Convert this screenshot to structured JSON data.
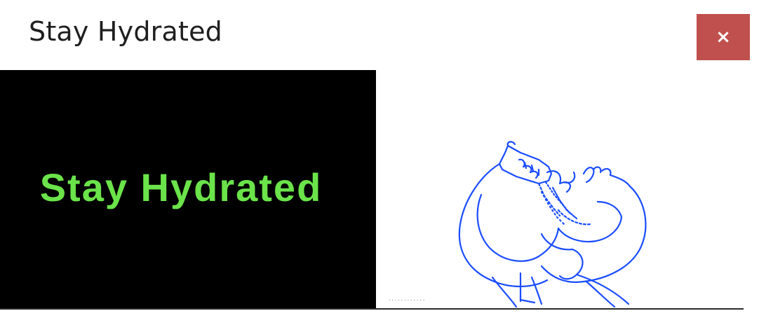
{
  "window": {
    "title": "Stay Hydrated",
    "close_label": "×"
  },
  "banner": {
    "text": "Stay Hydrated",
    "text_color": "#6be34a",
    "background_color": "#000000"
  },
  "illustration": {
    "subject": "line drawing of a person drinking from a water bottle",
    "line_color": "#1a4cff"
  },
  "colors": {
    "close_button": "#c0504d"
  }
}
